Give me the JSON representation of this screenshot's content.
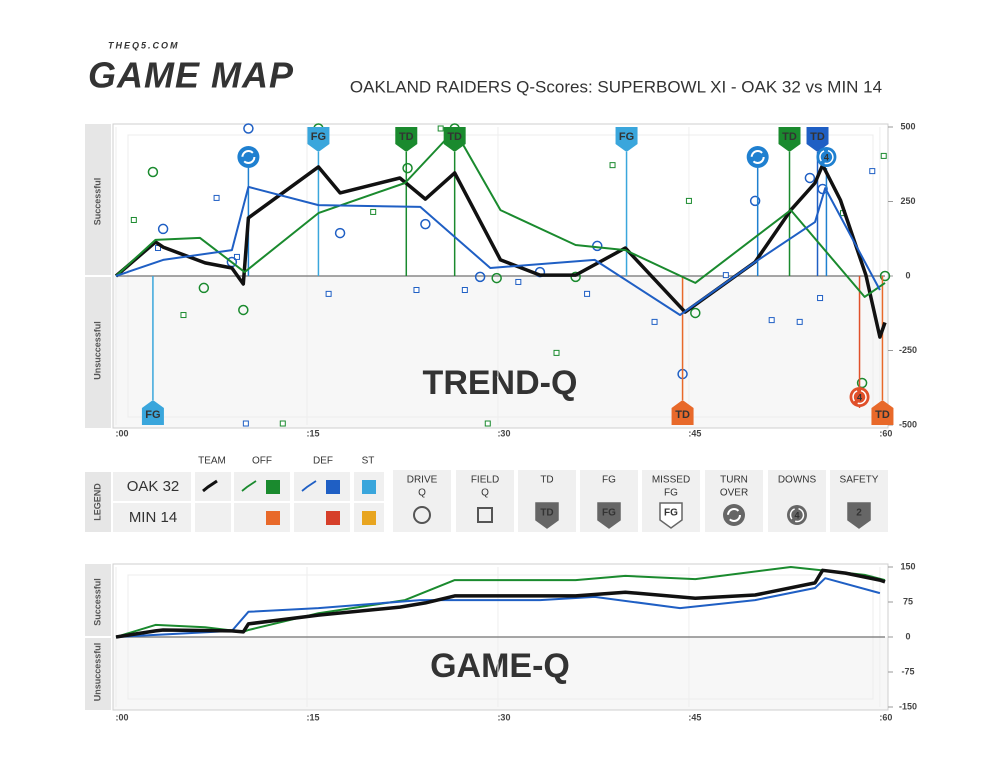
{
  "header": {
    "site": "THEQ5.COM",
    "logo": "GAME MAP",
    "title": "OAKLAND RAIDERS Q-Scores: SUPERBOWL XI - OAK 32 vs MIN 14"
  },
  "chart_data": [
    {
      "type": "line",
      "watermark": "TREND-Q",
      "y_labels": [
        "Successful",
        "Unsuccessful"
      ],
      "xlim": [
        0,
        60.4
      ],
      "xticks": [
        {
          "value": 0,
          "label": ":00"
        },
        {
          "value": 15,
          "label": ":15"
        },
        {
          "value": 30,
          "label": ":30"
        },
        {
          "value": 45,
          "label": ":45"
        },
        {
          "value": 60,
          "label": ":60"
        }
      ],
      "ylim": [
        -500,
        500
      ],
      "yticks": [
        500,
        250,
        0,
        -250,
        -500
      ],
      "grid": true,
      "series": [
        {
          "name": "TEAM",
          "color": "#111111",
          "width": 3.5,
          "x": [
            0,
            3.1,
            3.7,
            7.0,
            9.1,
            10.0,
            10.4,
            15.9,
            17.6,
            22.3,
            24.3,
            26.6,
            30.2,
            33.3,
            36.1,
            40.0,
            44.7,
            50.2,
            53.0,
            54.9,
            55.5,
            56.9,
            58.9,
            60.0,
            60.4
          ],
          "values": [
            0,
            114,
            97,
            44,
            27,
            -27,
            195,
            366,
            279,
            329,
            258,
            346,
            54,
            3,
            3,
            94,
            -121,
            47,
            221,
            312,
            372,
            255,
            3,
            -205,
            -156
          ]
        },
        {
          "name": "OFF",
          "color": "#1a8a2e",
          "width": 2,
          "x": [
            0,
            3.1,
            6.6,
            10.1,
            15.9,
            22.7,
            26.6,
            30.2,
            36.1,
            40.0,
            45.5,
            53.0,
            58.8,
            60.4
          ],
          "values": [
            0,
            121,
            128,
            13,
            211,
            312,
            490,
            221,
            104,
            87,
            -23,
            221,
            -70,
            -23
          ]
        },
        {
          "name": "DEF",
          "color": "#1f5fc4",
          "width": 2,
          "x": [
            0,
            3.7,
            9.1,
            10.4,
            15.9,
            23.9,
            29.4,
            37.6,
            44.3,
            50.2,
            54.9,
            55.7,
            60.0
          ],
          "values": [
            0,
            54,
            87,
            299,
            238,
            232,
            27,
            54,
            -131,
            47,
            181,
            295,
            -47
          ]
        }
      ],
      "drive_q": [
        {
          "x": 2.9,
          "y": 349,
          "color": "#1a8a2e"
        },
        {
          "x": 6.9,
          "y": -40,
          "color": "#1a8a2e"
        },
        {
          "x": 10.0,
          "y": -114,
          "color": "#1a8a2e"
        },
        {
          "x": 15.9,
          "y": 495,
          "color": "#1a8a2e"
        },
        {
          "x": 22.9,
          "y": 362,
          "color": "#1a8a2e"
        },
        {
          "x": 26.6,
          "y": 495,
          "color": "#1a8a2e"
        },
        {
          "x": 29.9,
          "y": -7,
          "color": "#1a8a2e"
        },
        {
          "x": 36.1,
          "y": -3,
          "color": "#1a8a2e"
        },
        {
          "x": 45.5,
          "y": -124,
          "color": "#1a8a2e"
        },
        {
          "x": 58.6,
          "y": -359,
          "color": "#1a8a2e"
        },
        {
          "x": 60.4,
          "y": 0,
          "color": "#1a8a2e"
        },
        {
          "x": 10.4,
          "y": 495,
          "color": "#1f5fc4"
        },
        {
          "x": 3.7,
          "y": 158,
          "color": "#1f5fc4"
        },
        {
          "x": 9.1,
          "y": 47,
          "color": "#1f5fc4"
        },
        {
          "x": 17.6,
          "y": 144,
          "color": "#1f5fc4"
        },
        {
          "x": 24.3,
          "y": 174,
          "color": "#1f5fc4"
        },
        {
          "x": 28.6,
          "y": -3,
          "color": "#1f5fc4"
        },
        {
          "x": 33.3,
          "y": 13,
          "color": "#1f5fc4"
        },
        {
          "x": 37.8,
          "y": 101,
          "color": "#1f5fc4"
        },
        {
          "x": 44.5,
          "y": -329,
          "color": "#1f5fc4"
        },
        {
          "x": 50.2,
          "y": 252,
          "color": "#1f5fc4"
        },
        {
          "x": 54.5,
          "y": 329,
          "color": "#1f5fc4"
        },
        {
          "x": 55.5,
          "y": 292,
          "color": "#1f5fc4"
        }
      ],
      "field_q": [
        {
          "x": 1.4,
          "y": 188,
          "color": "#1a8a2e"
        },
        {
          "x": 5.3,
          "y": -131,
          "color": "#1a8a2e"
        },
        {
          "x": 20.2,
          "y": 215,
          "color": "#1a8a2e"
        },
        {
          "x": 25.5,
          "y": 495,
          "color": "#1a8a2e"
        },
        {
          "x": 39.0,
          "y": 372,
          "color": "#1a8a2e"
        },
        {
          "x": 45.0,
          "y": 252,
          "color": "#1a8a2e"
        },
        {
          "x": 60.3,
          "y": 403,
          "color": "#1a8a2e"
        },
        {
          "x": 57.1,
          "y": 211,
          "color": "#1a8a2e"
        },
        {
          "x": 13.1,
          "y": -495,
          "color": "#1a8a2e"
        },
        {
          "x": 29.2,
          "y": -495,
          "color": "#1a8a2e"
        },
        {
          "x": 34.6,
          "y": -258,
          "color": "#1a8a2e"
        },
        {
          "x": 3.3,
          "y": 94,
          "color": "#1f5fc4"
        },
        {
          "x": 7.9,
          "y": 262,
          "color": "#1f5fc4"
        },
        {
          "x": 9.5,
          "y": 64,
          "color": "#1f5fc4"
        },
        {
          "x": 16.7,
          "y": -60,
          "color": "#1f5fc4"
        },
        {
          "x": 23.6,
          "y": -47,
          "color": "#1f5fc4"
        },
        {
          "x": 27.4,
          "y": -47,
          "color": "#1f5fc4"
        },
        {
          "x": 31.6,
          "y": -20,
          "color": "#1f5fc4"
        },
        {
          "x": 37.0,
          "y": -60,
          "color": "#1f5fc4"
        },
        {
          "x": 42.3,
          "y": -154,
          "color": "#1f5fc4"
        },
        {
          "x": 47.9,
          "y": 3,
          "color": "#1f5fc4"
        },
        {
          "x": 51.5,
          "y": -148,
          "color": "#1f5fc4"
        },
        {
          "x": 53.7,
          "y": -154,
          "color": "#1f5fc4"
        },
        {
          "x": 55.3,
          "y": -74,
          "color": "#1f5fc4"
        },
        {
          "x": 59.4,
          "y": 352,
          "color": "#1f5fc4"
        },
        {
          "x": 10.2,
          "y": -495,
          "color": "#1f5fc4"
        }
      ],
      "events": [
        {
          "x": 2.9,
          "label": "FG",
          "color": "#3aa6dc",
          "side": "bottom",
          "shape": "shield"
        },
        {
          "x": 10.4,
          "color": "#1f80d0",
          "side": "top",
          "shape": "turnover"
        },
        {
          "x": 15.9,
          "label": "FG",
          "color": "#3aa6dc",
          "side": "top",
          "shape": "shield"
        },
        {
          "x": 22.8,
          "label": "TD",
          "color": "#1a8a2e",
          "side": "top",
          "shape": "shield"
        },
        {
          "x": 26.6,
          "label": "TD",
          "color": "#1a8a2e",
          "side": "top",
          "shape": "shield"
        },
        {
          "x": 40.1,
          "label": "FG",
          "color": "#3aa6dc",
          "side": "top",
          "shape": "shield"
        },
        {
          "x": 44.5,
          "label": "TD",
          "color": "#e8692a",
          "side": "bottom",
          "shape": "shield"
        },
        {
          "x": 50.4,
          "color": "#1f80d0",
          "side": "top",
          "shape": "turnover"
        },
        {
          "x": 52.9,
          "label": "TD",
          "color": "#1a8a2e",
          "side": "top",
          "shape": "shield"
        },
        {
          "x": 55.1,
          "label": "TD",
          "color": "#1f5fc4",
          "side": "top",
          "shape": "shield"
        },
        {
          "x": 55.8,
          "label": "4",
          "color": "#1f80d0",
          "side": "top",
          "shape": "downs"
        },
        {
          "x": 58.4,
          "label": "4",
          "color": "#e0502a",
          "side": "bottom",
          "shape": "downs"
        },
        {
          "x": 60.2,
          "label": "TD",
          "color": "#e8692a",
          "side": "bottom",
          "shape": "shield"
        }
      ]
    },
    {
      "type": "line",
      "watermark": "GAME-Q",
      "y_labels": [
        "Successful",
        "Unsuccessful"
      ],
      "xlim": [
        0,
        60.4
      ],
      "xticks": [
        {
          "value": 0,
          "label": ":00"
        },
        {
          "value": 15,
          "label": ":15"
        },
        {
          "value": 30,
          "label": ":30"
        },
        {
          "value": 45,
          "label": ":45"
        },
        {
          "value": 60,
          "label": ":60"
        }
      ],
      "ylim": [
        -150,
        150
      ],
      "yticks": [
        150,
        75,
        0,
        -75,
        -150
      ],
      "grid": true,
      "series": [
        {
          "color": "#1a8a2e",
          "width": 2,
          "x": [
            0,
            3.1,
            7.0,
            10.0,
            10.4,
            15.9,
            22.7,
            26.6,
            30.2,
            36.1,
            40.0,
            45.5,
            53.0,
            58.8,
            60.4
          ],
          "values": [
            0,
            26,
            21,
            11,
            15,
            51,
            79,
            122,
            122,
            122,
            131,
            124,
            150,
            133,
            122
          ]
        },
        {
          "color": "#1f5fc4",
          "width": 2,
          "x": [
            0,
            9.1,
            10.4,
            15.9,
            23.9,
            29.4,
            33.3,
            37.6,
            44.3,
            50.2,
            54.9,
            55.7,
            60.0
          ],
          "values": [
            0,
            13,
            54,
            62,
            79,
            79,
            79,
            86,
            62,
            79,
            105,
            126,
            94
          ]
        },
        {
          "color": "#111111",
          "width": 3.5,
          "x": [
            0,
            3.1,
            3.7,
            9.1,
            10.0,
            10.4,
            15.9,
            22.3,
            24.3,
            26.6,
            33.3,
            36.1,
            40.0,
            45.5,
            50.2,
            54.9,
            55.5,
            57.3,
            60.0,
            60.4
          ],
          "values": [
            0,
            13,
            15,
            13,
            11,
            28,
            47,
            64,
            73,
            88,
            88,
            88,
            96,
            83,
            90,
            116,
            143,
            137,
            122,
            118
          ]
        }
      ]
    }
  ],
  "legend": {
    "title": "LEGEND",
    "columns": [
      "TEAM",
      "OFF",
      "DEF",
      "ST"
    ],
    "teams": [
      {
        "name": "OAK 32",
        "team": "#111111",
        "off": "#1a8a2e",
        "def": "#1f5fc4",
        "st": "#3aa6dc"
      },
      {
        "name": "MIN 14",
        "off": "#e8692a",
        "def": "#d63f2a",
        "st": "#e8a520"
      }
    ],
    "symbols": [
      {
        "label": [
          "DRIVE",
          "Q"
        ],
        "icon": "circle"
      },
      {
        "label": [
          "FIELD",
          "Q"
        ],
        "icon": "square"
      },
      {
        "label": [
          "TD"
        ],
        "icon": "shield",
        "text": "TD"
      },
      {
        "label": [
          "FG"
        ],
        "icon": "shield",
        "text": "FG"
      },
      {
        "label": [
          "MISSED",
          "FG"
        ],
        "icon": "shield-outline",
        "text": "FG"
      },
      {
        "label": [
          "TURN",
          "OVER"
        ],
        "icon": "turnover"
      },
      {
        "label": [
          "DOWNS"
        ],
        "icon": "downs",
        "text": "4"
      },
      {
        "label": [
          "SAFETY"
        ],
        "icon": "shield",
        "text": "2"
      }
    ]
  }
}
